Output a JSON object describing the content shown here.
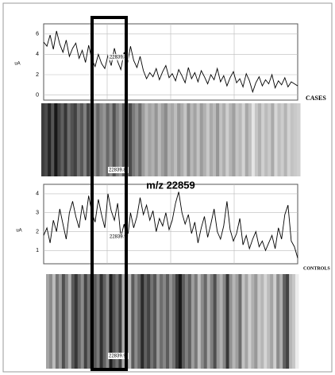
{
  "chart_data": [
    {
      "type": "line",
      "ylabel": "uA",
      "side_label": "CASES",
      "annotations": [
        "22839.8",
        "22839.8"
      ],
      "ylim": [
        -0.5,
        7
      ],
      "yticks": [
        0,
        2,
        4,
        6
      ],
      "grid": true,
      "series": [
        {
          "color": "#000000",
          "values": [
            5.2,
            4.8,
            5.9,
            4.5,
            6.3,
            5.0,
            4.2,
            5.4,
            3.8,
            4.6,
            5.1,
            3.6,
            4.4,
            3.2,
            4.9,
            3.5,
            2.8,
            4.0,
            3.1,
            2.6,
            3.9,
            2.9,
            4.6,
            3.3,
            2.5,
            4.2,
            3.0,
            4.8,
            3.4,
            2.7,
            3.8,
            2.4,
            1.6,
            2.2,
            1.8,
            2.6,
            1.5,
            2.3,
            2.9,
            1.7,
            2.1,
            1.4,
            2.5,
            1.9,
            1.2,
            2.7,
            1.6,
            2.2,
            1.3,
            2.4,
            1.8,
            1.1,
            2.0,
            1.5,
            2.6,
            1.3,
            1.9,
            0.9,
            1.7,
            2.3,
            1.2,
            1.6,
            0.8,
            2.1,
            1.4,
            0.3,
            1.2,
            1.8,
            0.9,
            1.5,
            1.1,
            2.0,
            0.7,
            1.4,
            1.0,
            1.7,
            0.8,
            1.3,
            1.1,
            0.9
          ]
        }
      ]
    },
    {
      "type": "line",
      "title": "m/z 22859",
      "ylabel": "uA",
      "side_label": "CONTROLS",
      "annotations": [
        "22839.9",
        "22839.9"
      ],
      "ylim": [
        0.3,
        4.5
      ],
      "yticks": [
        1,
        2,
        3,
        4
      ],
      "grid": true,
      "series": [
        {
          "color": "#000000",
          "values": [
            1.8,
            2.2,
            1.4,
            2.6,
            2.0,
            3.2,
            2.4,
            1.6,
            3.0,
            3.6,
            2.8,
            2.2,
            3.4,
            2.6,
            3.9,
            3.0,
            2.5,
            3.7,
            2.9,
            2.2,
            4.0,
            3.1,
            2.6,
            3.5,
            1.7,
            2.4,
            1.5,
            3.0,
            2.2,
            2.8,
            3.8,
            2.9,
            3.4,
            2.6,
            3.1,
            2.0,
            2.7,
            2.3,
            3.0,
            2.1,
            2.6,
            3.5,
            4.1,
            3.0,
            2.4,
            2.9,
            1.9,
            2.5,
            1.4,
            2.2,
            2.8,
            1.7,
            2.4,
            3.2,
            2.0,
            1.6,
            2.3,
            3.6,
            2.1,
            1.5,
            1.9,
            2.7,
            1.3,
            1.8,
            1.1,
            1.6,
            2.0,
            1.2,
            1.5,
            1.0,
            1.4,
            1.8,
            1.1,
            2.2,
            1.6,
            2.9,
            3.4,
            1.5,
            1.2,
            0.6
          ]
        }
      ]
    }
  ]
}
